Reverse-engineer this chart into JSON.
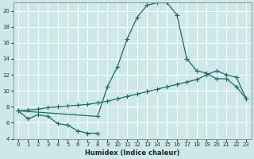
{
  "xlabel": "Humidex (Indice chaleur)",
  "bg_color": "#cce8e8",
  "grid_color": "#ffffff",
  "line_color": "#1a6b6b",
  "xlim": [
    -0.5,
    23.5
  ],
  "ylim": [
    4,
    21
  ],
  "xticks": [
    0,
    1,
    2,
    3,
    4,
    5,
    6,
    7,
    8,
    9,
    10,
    11,
    12,
    13,
    14,
    15,
    16,
    17,
    18,
    19,
    20,
    21,
    22,
    23
  ],
  "yticks": [
    4,
    6,
    8,
    10,
    12,
    14,
    16,
    18,
    20
  ],
  "series1_x": [
    0,
    1,
    2,
    3,
    4,
    5,
    6,
    7,
    8
  ],
  "series1_y": [
    7.5,
    6.5,
    7.0,
    6.8,
    5.9,
    5.7,
    5.0,
    4.7,
    4.7
  ],
  "series2_x": [
    0,
    8,
    9,
    10,
    11,
    12,
    13,
    14,
    15,
    16,
    17
  ],
  "series2_y": [
    7.5,
    6.8,
    10.5,
    13.0,
    16.5,
    19.2,
    20.7,
    21.0,
    21.0,
    19.5,
    14.0
  ],
  "series3_x": [
    0,
    1,
    2,
    3,
    4,
    5,
    6,
    7,
    8,
    9,
    10,
    11,
    12,
    13,
    14,
    15,
    16,
    17,
    18,
    19,
    20,
    21,
    22,
    23
  ],
  "series3_y": [
    7.5,
    7.6,
    7.7,
    7.9,
    8.0,
    8.1,
    8.2,
    8.3,
    8.5,
    8.7,
    9.0,
    9.3,
    9.6,
    9.9,
    10.2,
    10.5,
    10.8,
    11.1,
    11.4,
    12.0,
    12.5,
    12.0,
    11.7,
    9.0
  ],
  "series4_x": [
    17,
    18,
    19,
    20,
    21,
    22,
    23
  ],
  "series4_y": [
    14.0,
    12.5,
    12.2,
    11.5,
    11.5,
    10.5,
    9.0
  ]
}
